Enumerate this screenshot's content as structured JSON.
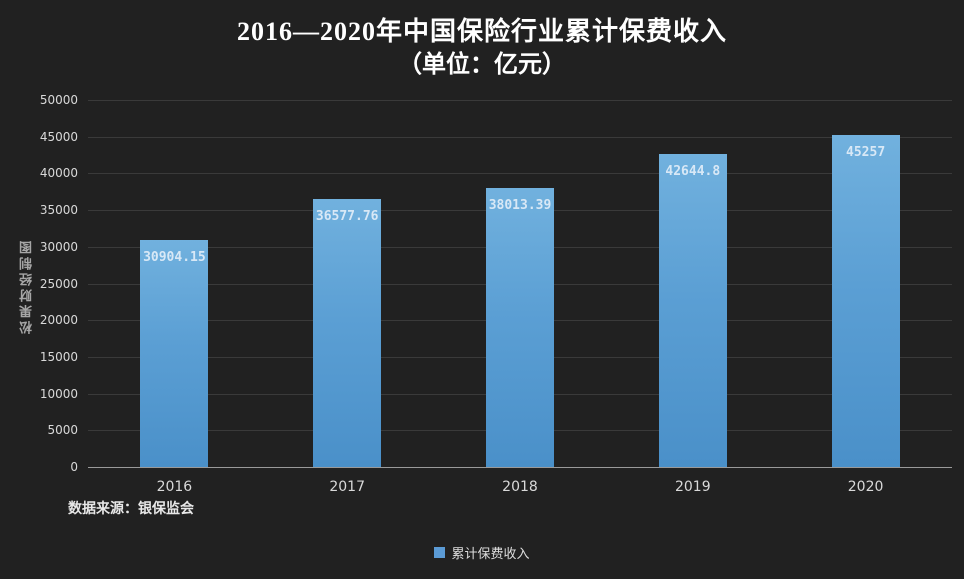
{
  "title": {
    "line1": "2016—2020年中国保险行业累计保费收入",
    "line2": "（单位：亿元）"
  },
  "watermark": "松果财经制图",
  "source_note": "数据来源：银保监会",
  "legend": {
    "label": "累计保费收入",
    "color": "#5B9BD5"
  },
  "colors": {
    "background": "#212121",
    "bar_top": "#71b1de",
    "bar_bottom": "#4a90c9",
    "grid": "#3a3a3a",
    "axis": "#9a9a9a",
    "tick_text": "#d9d9d9",
    "value_text": "#d8e8f6",
    "title_text": "#ffffff"
  },
  "chart_data": {
    "type": "bar",
    "title": "2016—2020年中国保险行业累计保费收入（单位：亿元）",
    "categories": [
      "2016",
      "2017",
      "2018",
      "2019",
      "2020"
    ],
    "values": [
      30904.15,
      36577.76,
      38013.39,
      42644.8,
      45257
    ],
    "value_labels": [
      "30904.15",
      "36577.76",
      "38013.39",
      "42644.8",
      "45257"
    ],
    "xlabel": "",
    "ylabel": "",
    "ylim": [
      0,
      50000
    ],
    "ytick_step": 5000,
    "grid": true,
    "legend_entries": [
      "累计保费收入"
    ],
    "legend_position": "bottom"
  }
}
